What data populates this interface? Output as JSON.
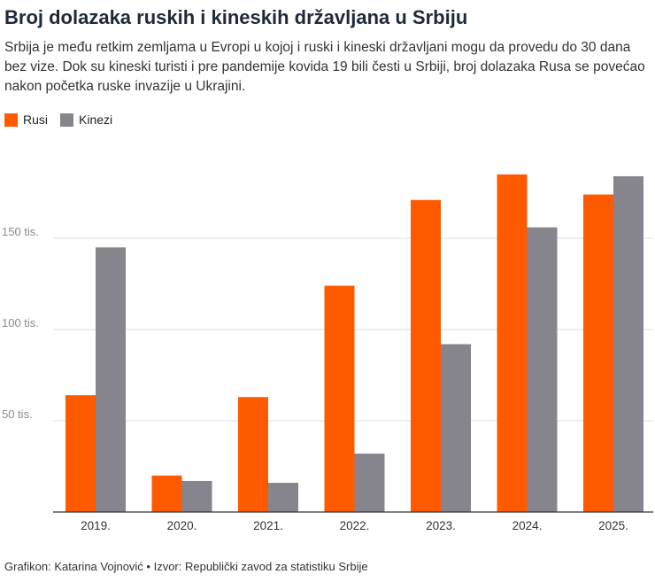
{
  "title": "Broj dolazaka ruskih i kineskih državljana u Srbiju",
  "subtitle": "Srbija je među retkim zemljama u Evropi u kojoj i ruski i kineski državljani mogu da provedu do 30 dana bez vize. Dok su kineski turisti i pre pandemije kovida 19 bili česti u Srbiji, broj dolazaka Rusa se povećao nakon početka ruske invazije u Ukrajini.",
  "legend": [
    {
      "label": "Rusi",
      "color": "#ff5a00"
    },
    {
      "label": "Kinezi",
      "color": "#86858d"
    }
  ],
  "footer": "Grafikon: Katarina Vojnović • Izvor: Republički zavod za statistiku Srbije",
  "chart_data": {
    "type": "bar",
    "title": "Broj dolazaka ruskih i kineskih državljana u Srbiju",
    "xlabel": "",
    "ylabel": "",
    "categories": [
      "2019.",
      "2020.",
      "2021.",
      "2022.",
      "2023.",
      "2024.",
      "2025."
    ],
    "series": [
      {
        "name": "Rusi",
        "color": "#ff5a00",
        "values": [
          64000,
          20000,
          63000,
          124000,
          171000,
          185000,
          174000
        ]
      },
      {
        "name": "Kinezi",
        "color": "#86858d",
        "values": [
          145000,
          17000,
          16000,
          32000,
          92000,
          156000,
          184000
        ]
      }
    ],
    "ylim": [
      0,
      190000
    ],
    "yticks": [
      {
        "value": 50000,
        "label": "50 tis."
      },
      {
        "value": 100000,
        "label": "100 tis."
      },
      {
        "value": 150000,
        "label": "150 tis."
      }
    ],
    "grid": true,
    "legend_position": "top-left"
  }
}
